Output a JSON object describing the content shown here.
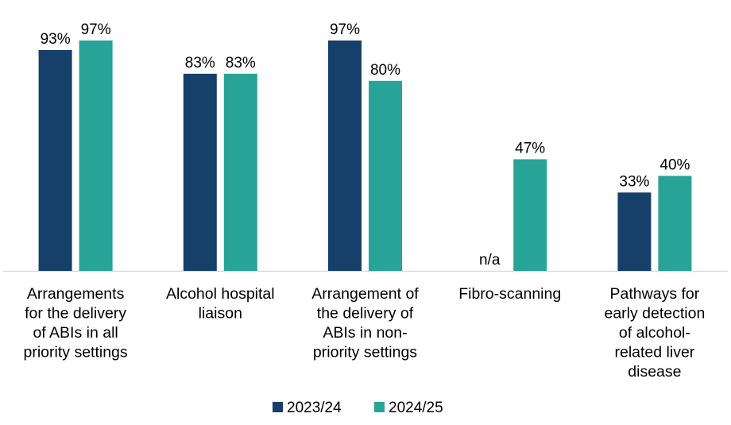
{
  "chart_data": {
    "type": "bar",
    "title": "",
    "xlabel": "",
    "ylabel": "",
    "ylim": [
      0,
      100
    ],
    "grid": false,
    "legend_position": "bottom",
    "categories": [
      [
        "Arrangements",
        "for the delivery",
        "of ABIs in all",
        "priority settings"
      ],
      [
        "Alcohol hospital",
        "liaison"
      ],
      [
        "Arrangement of",
        "the delivery of",
        "ABIs in non-",
        "priority settings"
      ],
      [
        "Fibro-scanning"
      ],
      [
        "Pathways for",
        "early detection",
        "of alcohol-",
        "related liver",
        "disease"
      ]
    ],
    "series": [
      {
        "name": "2023/24",
        "color": "#16406a",
        "values": [
          93,
          83,
          97,
          null,
          33
        ],
        "labels": [
          "93%",
          "83%",
          "97%",
          "n/a",
          "33%"
        ]
      },
      {
        "name": "2024/25",
        "color": "#28a397",
        "values": [
          97,
          83,
          80,
          47,
          40
        ],
        "labels": [
          "97%",
          "83%",
          "80%",
          "47%",
          "40%"
        ]
      }
    ]
  }
}
